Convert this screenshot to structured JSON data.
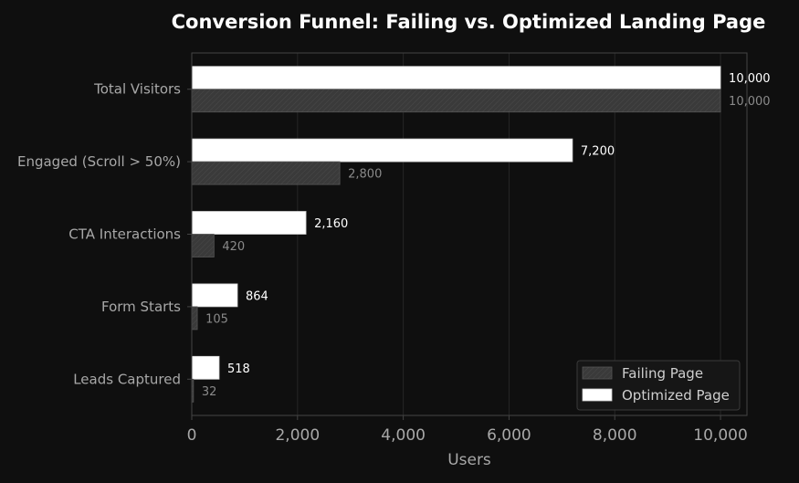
{
  "chart_data": {
    "type": "bar",
    "orientation": "horizontal",
    "title": "Conversion Funnel: Failing vs. Optimized Landing Page",
    "xlabel": "Users",
    "ylabel": "",
    "xlim": [
      0,
      10500
    ],
    "xticks": [
      0,
      2000,
      4000,
      6000,
      8000,
      10000
    ],
    "xtick_labels": [
      "0",
      "2,000",
      "4,000",
      "6,000",
      "8,000",
      "10,000"
    ],
    "categories": [
      "Total Visitors",
      "Engaged (Scroll > 50%)",
      "CTA Interactions",
      "Form Starts",
      "Leads Captured"
    ],
    "series": [
      {
        "name": "Failing Page",
        "values": [
          10000,
          2800,
          420,
          105,
          32
        ],
        "labels": [
          "10,000",
          "2,800",
          "420",
          "105",
          "32"
        ],
        "color": "#3a3a3a"
      },
      {
        "name": "Optimized Page",
        "values": [
          10000,
          7200,
          2160,
          864,
          518
        ],
        "labels": [
          "10,000",
          "7,200",
          "2,160",
          "864",
          "518"
        ],
        "color": "#ffffff"
      }
    ],
    "grid": true,
    "legend_position": "bottom-right",
    "colors": {
      "background": "#0f0f0f",
      "axes_border": "#444444",
      "grid": "#262626",
      "title": "#ffffff",
      "tick_label": "#a8a8a8",
      "failing_label": "#8a8a8a",
      "optimized_label": "#ffffff"
    }
  }
}
